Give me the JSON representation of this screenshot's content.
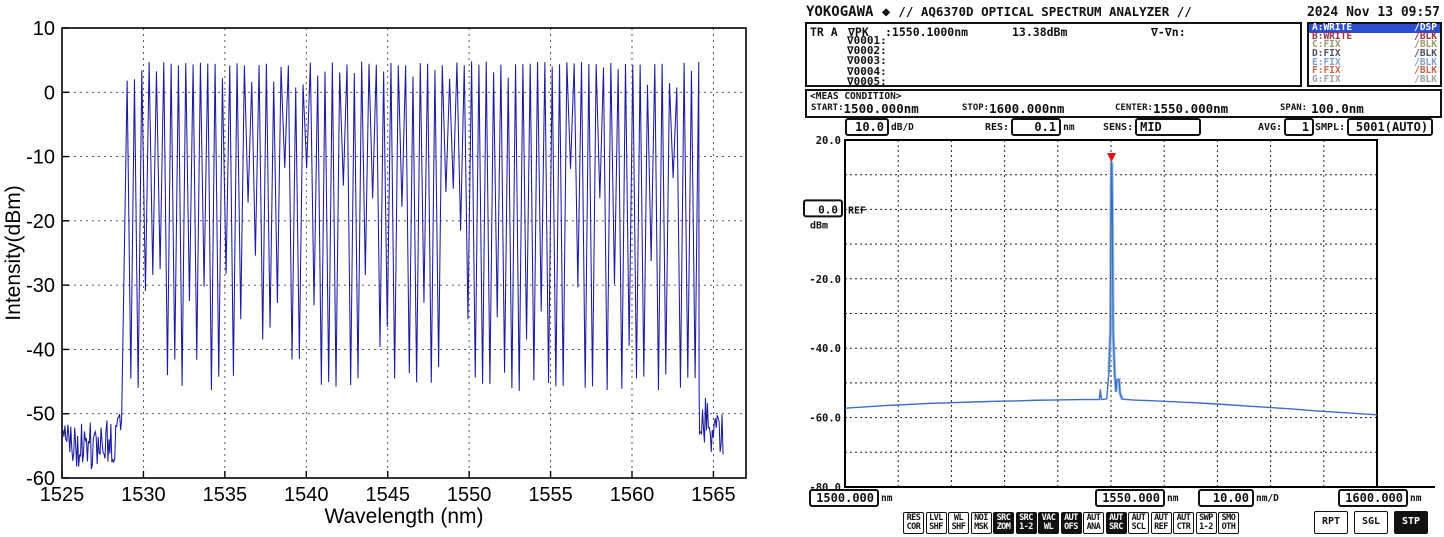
{
  "chart_data": [
    {
      "type": "line",
      "title": "",
      "xlabel": "Wavelength (nm)",
      "ylabel": "Intensity(dBm)",
      "xlim": [
        1525,
        1567
      ],
      "ylim": [
        -60,
        10
      ],
      "x_ticks": [
        1525,
        1530,
        1535,
        1540,
        1545,
        1550,
        1555,
        1560,
        1565
      ],
      "y_ticks": [
        10,
        0,
        -10,
        -20,
        -30,
        -40,
        -50,
        -60
      ],
      "grid": true,
      "line_color": "#1c1c9e",
      "comb": {
        "start_nm": 1529.0,
        "end_nm": 1564.0,
        "spacing_nm": 0.45,
        "peak_dbm_typical": 4.5,
        "peak_dbm_range": [
          0.6,
          4.8
        ],
        "valley_dbm_range": [
          -46.5,
          -11
        ],
        "valley_floor_dbm": -45,
        "noise_floor_dbm": -55,
        "noise_regions": [
          [
            1525.0,
            1528.7
          ],
          [
            1564.15,
            1565.6
          ]
        ]
      }
    },
    {
      "type": "line",
      "title": "",
      "x_start_nm": 1500.0,
      "x_stop_nm": 1600.0,
      "x_center_nm": 1550.0,
      "span_nm": 100.0,
      "ylim": [
        -80,
        20
      ],
      "db_per_div": 10.0,
      "nm_per_div": 10.0,
      "ref_dbm": 0.0,
      "peak": {
        "wavelength_nm": 1550.1,
        "power_dbm": 13.38
      },
      "trace_points": [
        [
          1500,
          -57.3
        ],
        [
          1504,
          -56.9
        ],
        [
          1508,
          -56.5
        ],
        [
          1512,
          -56.2
        ],
        [
          1516,
          -55.9
        ],
        [
          1520,
          -55.7
        ],
        [
          1524,
          -55.5
        ],
        [
          1528,
          -55.3
        ],
        [
          1532,
          -55.2
        ],
        [
          1536,
          -55.0
        ],
        [
          1540,
          -54.9
        ],
        [
          1544,
          -54.8
        ],
        [
          1546.5,
          -54.8
        ],
        [
          1547.8,
          -54.8
        ],
        [
          1548.0,
          -52.0
        ],
        [
          1548.2,
          -54.8
        ],
        [
          1549.2,
          -54.6
        ],
        [
          1549.6,
          -47.0
        ],
        [
          1549.9,
          -35.0
        ],
        [
          1550.0,
          2.0
        ],
        [
          1550.05,
          13.38
        ],
        [
          1550.15,
          13.38
        ],
        [
          1550.25,
          2.0
        ],
        [
          1550.4,
          -35.0
        ],
        [
          1550.7,
          -47.5
        ],
        [
          1550.95,
          -52.5
        ],
        [
          1551.1,
          -49.2
        ],
        [
          1551.5,
          -49.0
        ],
        [
          1551.7,
          -53.0
        ],
        [
          1552.1,
          -54.7
        ],
        [
          1554,
          -54.9
        ],
        [
          1557,
          -55.1
        ],
        [
          1560,
          -55.3
        ],
        [
          1564,
          -55.6
        ],
        [
          1568,
          -55.9
        ],
        [
          1572,
          -56.3
        ],
        [
          1576,
          -56.7
        ],
        [
          1580,
          -57.1
        ],
        [
          1584,
          -57.5
        ],
        [
          1588,
          -58.0
        ],
        [
          1592,
          -58.4
        ],
        [
          1596,
          -58.8
        ],
        [
          1600,
          -59.2
        ]
      ]
    }
  ],
  "osa": {
    "brand": "YOKOGAWA ◆",
    "title": "// AQ6370D OPTICAL SPECTRUM ANALYZER //",
    "datetime": "2024 Nov 13 09:57",
    "readout": {
      "tr_label": "TR A",
      "pk_label": "∇PK",
      "pk_wavelength": ":1550.1000nm",
      "pk_power": "13.38dBm",
      "delta_label": "∇-∇n:"
    },
    "marker_rows": [
      "∇0001:",
      "∇0002:",
      "∇0003:",
      "∇0004:",
      "∇0005:"
    ],
    "traces": [
      {
        "name": "A:WRITE",
        "status": "/DSP",
        "fg": "#ffffff",
        "bg": "#2b4fd0"
      },
      {
        "name": "B:WRITE",
        "status": "/BLK",
        "fg": "#9c3246",
        "bg": ""
      },
      {
        "name": "C:FIX",
        "status": "/BLK",
        "fg": "#989a6d",
        "bg": ""
      },
      {
        "name": "D:FIX",
        "status": "/BLK",
        "fg": "#50505a",
        "bg": ""
      },
      {
        "name": "E:FIX",
        "status": "/BLK",
        "fg": "#7e9fc8",
        "bg": ""
      },
      {
        "name": "F:FIX",
        "status": "/BLK",
        "fg": "#c8684a",
        "bg": ""
      },
      {
        "name": "G:FIX",
        "status": "/BLK",
        "fg": "#a2a2a2",
        "bg": ""
      }
    ],
    "meas": {
      "header": "<MEAS CONDITION>",
      "start_label": "START:",
      "start": "1500.000nm",
      "stop_label": "STOP:",
      "stop": "1600.000nm",
      "center_label": "CENTER:",
      "center": "1550.000nm",
      "span_label": "SPAN:",
      "span": "100.0nm"
    },
    "settings": {
      "level_scale": "10.0",
      "level_scale_unit": "dB/D",
      "res_label": "RES:",
      "res": "0.1",
      "res_unit": "nm",
      "sens_label": "SENS:",
      "sens": "MID",
      "avg_label": "AVG:",
      "avg": "1",
      "smpl_label": "SMPL:",
      "smpl": "5001(AUTO)"
    },
    "graph": {
      "y_axis_labels": [
        {
          "text": "20.0",
          "value": 20
        },
        {
          "text": "-20.0",
          "value": -20
        },
        {
          "text": "-40.0",
          "value": -40
        },
        {
          "text": "-60.0",
          "value": -60
        },
        {
          "text": "-80.0",
          "value": -80
        }
      ],
      "ref_value": "0.0",
      "ref_unit": "dBm",
      "ref_label": "REF",
      "trace_color": "#3a6fc0",
      "trace_glow_color": "#aac8e6",
      "marker_color": "#dd1111"
    },
    "scale": {
      "start": "1500.000",
      "start_unit": "nm",
      "center": "1550.000",
      "center_unit": "nm",
      "div": "10.00",
      "div_unit": "nm/D",
      "stop": "1600.000",
      "stop_unit": "nm"
    },
    "softkeys": [
      {
        "l1": "RES",
        "l2": "COR",
        "inverted": false
      },
      {
        "l1": "LVL",
        "l2": "SHF",
        "inverted": false
      },
      {
        "l1": "WL",
        "l2": "SHF",
        "inverted": false
      },
      {
        "l1": "NOI",
        "l2": "MSK",
        "inverted": false
      },
      {
        "l1": "SRC",
        "l2": "ZOM",
        "inverted": true
      },
      {
        "l1": "SRC",
        "l2": "1-2",
        "inverted": true
      },
      {
        "l1": "VAC",
        "l2": "WL",
        "inverted": true
      },
      {
        "l1": "AUT",
        "l2": "OFS",
        "inverted": true
      },
      {
        "l1": "AUT",
        "l2": "ANA",
        "inverted": false
      },
      {
        "l1": "AUT",
        "l2": "SRC",
        "inverted": true
      },
      {
        "l1": "AUT",
        "l2": "SCL",
        "inverted": false
      },
      {
        "l1": "AUT",
        "l2": "REF",
        "inverted": false
      },
      {
        "l1": "AUT",
        "l2": "CTR",
        "inverted": false
      },
      {
        "l1": "SWP",
        "l2": "1-2",
        "inverted": false
      },
      {
        "l1": "SMO",
        "l2": "OTH",
        "inverted": false
      }
    ],
    "sweep_keys": [
      {
        "label": "RPT",
        "inverted": false
      },
      {
        "label": "SGL",
        "inverted": false
      },
      {
        "label": "STP",
        "inverted": true
      }
    ]
  }
}
